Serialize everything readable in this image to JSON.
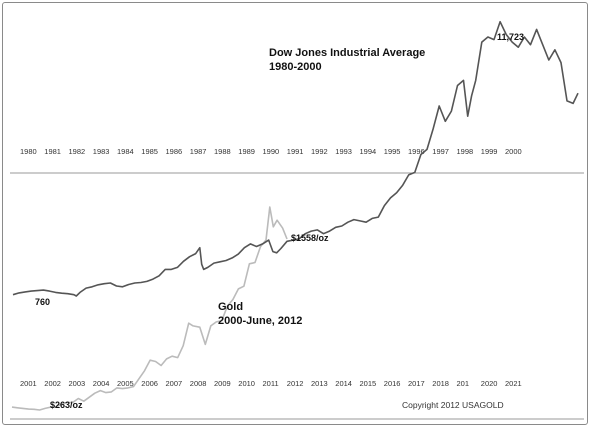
{
  "chart_data": [
    {
      "type": "line",
      "title": "Dow Jones Industrial Average",
      "subtitle": "1980-2000",
      "x_tick_labels": [
        "1980",
        "1981",
        "1982",
        "1983",
        "1984",
        "1985",
        "1986",
        "1987",
        "1988",
        "1989",
        "1990",
        "1991",
        "1992",
        "1993",
        "1994",
        "1995",
        "1996",
        "1997",
        "1998",
        "1999",
        "2000"
      ],
      "color": "#555555",
      "annotations": [
        {
          "text": "760",
          "x": 1982.6,
          "y": 760
        },
        {
          "text": "11,723",
          "x": 2000.0,
          "y": 11723
        }
      ],
      "series": [
        {
          "x": [
            1980.0,
            1980.25,
            1980.5,
            1980.75,
            1981.0,
            1981.25,
            1981.5,
            1981.75,
            1982.0,
            1982.25,
            1982.5,
            1982.6,
            1982.75,
            1983.0,
            1983.25,
            1983.5,
            1983.75,
            1984.0,
            1984.25,
            1984.5,
            1984.75,
            1985.0,
            1985.25,
            1985.5,
            1985.75,
            1986.0,
            1986.25,
            1986.5,
            1986.75,
            1987.0,
            1987.25,
            1987.5,
            1987.67,
            1987.75,
            1987.83,
            1988.0,
            1988.25,
            1988.5,
            1988.75,
            1989.0,
            1989.25,
            1989.5,
            1989.75,
            1990.0,
            1990.25,
            1990.5,
            1990.67,
            1990.83,
            1991.0,
            1991.25,
            1991.5,
            1991.75,
            1992.0,
            1992.25,
            1992.5,
            1992.75,
            1993.0,
            1993.25,
            1993.5,
            1993.75,
            1994.0,
            1994.25,
            1994.5,
            1994.75,
            1995.0,
            1995.25,
            1995.5,
            1995.75,
            1996.0,
            1996.25,
            1996.5,
            1996.75,
            1997.0,
            1997.25,
            1997.5,
            1997.75,
            1998.0,
            1998.25,
            1998.5,
            1998.67,
            1998.83,
            1999.0,
            1999.25,
            1999.5,
            1999.75,
            2000.0,
            2000.25,
            2000.5,
            2000.75,
            2001.0,
            2001.25,
            2001.5,
            2001.75,
            2002.0,
            2002.25,
            2002.5,
            2002.75,
            2003.0,
            2003.2
          ],
          "y": [
            810,
            880,
            920,
            950,
            970,
            990,
            950,
            900,
            870,
            850,
            810,
            760,
            900,
            1070,
            1120,
            1200,
            1240,
            1270,
            1150,
            1120,
            1210,
            1270,
            1290,
            1330,
            1420,
            1550,
            1800,
            1800,
            1880,
            2120,
            2300,
            2420,
            2650,
            2000,
            1800,
            1880,
            2050,
            2100,
            2150,
            2250,
            2400,
            2650,
            2800,
            2700,
            2800,
            2950,
            2500,
            2450,
            2620,
            2900,
            2950,
            3000,
            3200,
            3300,
            3350,
            3200,
            3300,
            3450,
            3500,
            3650,
            3750,
            3700,
            3650,
            3800,
            3850,
            4300,
            4600,
            4800,
            5100,
            5500,
            5600,
            6300,
            6500,
            7300,
            8200,
            7600,
            8000,
            9000,
            9200,
            7800,
            8600,
            9200,
            10700,
            10900,
            10800,
            11500,
            11000,
            10700,
            10500,
            10900,
            10600,
            11200,
            10600,
            10000,
            10400,
            9900,
            8400,
            8300,
            8700
          ]
        }
      ]
    },
    {
      "type": "line",
      "title": "Gold",
      "subtitle": "2000-June, 2012",
      "x_tick_labels": [
        "2001",
        "2002",
        "2003",
        "2004",
        "2005",
        "2006",
        "2007",
        "2008",
        "2009",
        "2010",
        "2011",
        "2012",
        "2013",
        "2014",
        "2015",
        "2016",
        "2017",
        "2018",
        "201",
        "2020",
        "2021"
      ],
      "color": "#bbbbbb",
      "annotations": [
        {
          "text": "$263/oz",
          "x": 2001.4,
          "y": 263
        },
        {
          "text": "$1558/oz",
          "x": 2012.5,
          "y": 1558
        }
      ],
      "series": [
        {
          "x": [
            2000.0,
            2000.25,
            2000.5,
            2000.75,
            2001.0,
            2001.25,
            2001.5,
            2001.75,
            2002.0,
            2002.25,
            2002.5,
            2002.75,
            2003.0,
            2003.25,
            2003.5,
            2003.75,
            2004.0,
            2004.25,
            2004.5,
            2004.75,
            2005.0,
            2005.25,
            2005.5,
            2005.75,
            2006.0,
            2006.25,
            2006.5,
            2006.75,
            2007.0,
            2007.25,
            2007.5,
            2007.75,
            2008.0,
            2008.2,
            2008.5,
            2008.75,
            2009.0,
            2009.25,
            2009.5,
            2009.75,
            2010.0,
            2010.25,
            2010.5,
            2010.75,
            2011.0,
            2011.25,
            2011.5,
            2011.67,
            2011.83,
            2012.0,
            2012.25,
            2012.45
          ],
          "y": [
            285,
            280,
            275,
            270,
            268,
            263,
            275,
            285,
            285,
            310,
            320,
            320,
            350,
            330,
            360,
            390,
            410,
            395,
            400,
            430,
            425,
            430,
            440,
            500,
            560,
            640,
            630,
            600,
            650,
            670,
            660,
            750,
            920,
            900,
            890,
            760,
            900,
            930,
            940,
            1050,
            1100,
            1180,
            1200,
            1370,
            1380,
            1500,
            1550,
            1800,
            1650,
            1700,
            1640,
            1558
          ]
        }
      ]
    }
  ],
  "copyright": "Copyright 2012 USAGOLD"
}
